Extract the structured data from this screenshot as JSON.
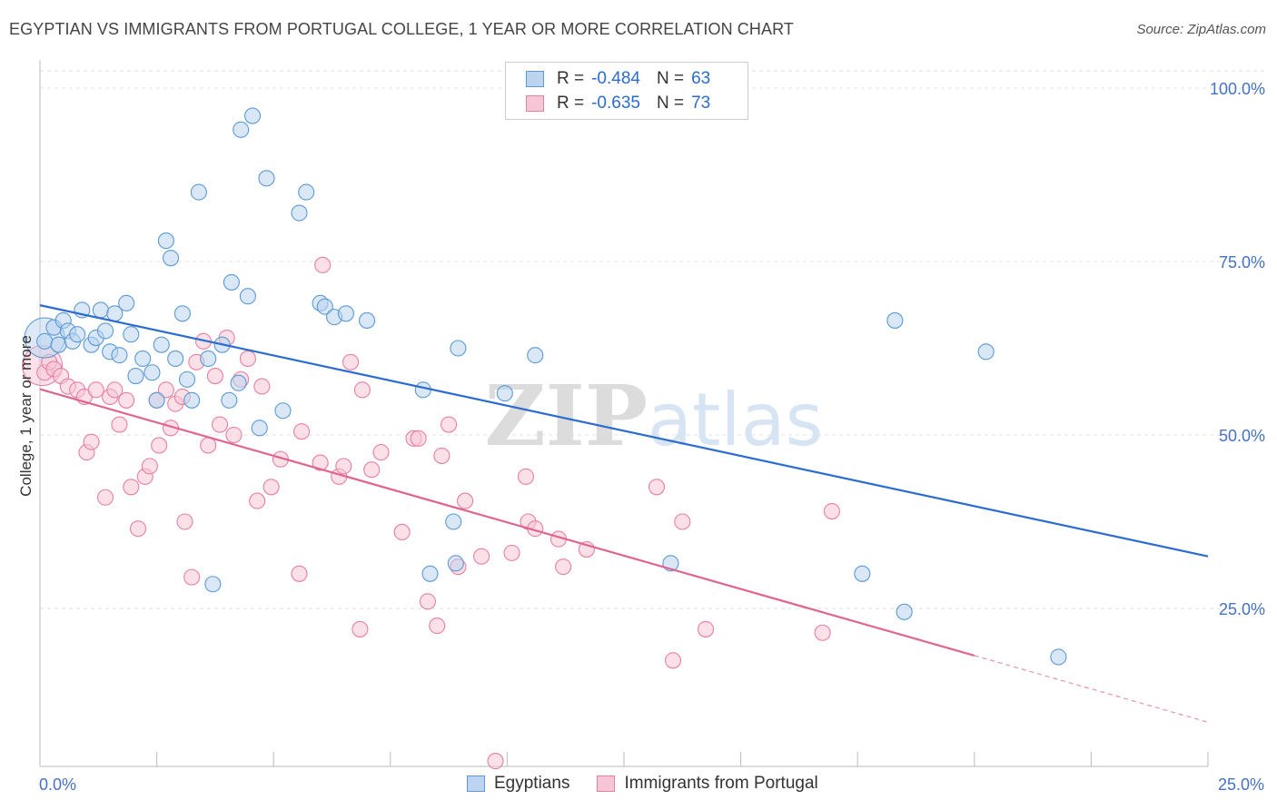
{
  "title": "EGYPTIAN VS IMMIGRANTS FROM PORTUGAL COLLEGE, 1 YEAR OR MORE CORRELATION CHART",
  "source": "Source: ZipAtlas.com",
  "watermark": "ZIPatlas",
  "colors": {
    "blue": "#5b9bd5",
    "blue_fill": "#bcd4f0",
    "blue_line": "#2a6ccf",
    "pink": "#e87fa3",
    "pink_fill": "#f7c6d6",
    "pink_line": "#e0648f",
    "tick_text": "#4472c4"
  },
  "legend": {
    "rows": [
      {
        "r_label": "R =",
        "r_value": "-0.484",
        "n_label": "N =",
        "n_value": "63"
      },
      {
        "r_label": "R =",
        "r_value": "-0.635",
        "n_label": "N =",
        "n_value": "73"
      }
    ]
  },
  "bottom_legend": {
    "series1": "Egyptians",
    "series2": "Immigrants from Portugal"
  },
  "chart_data": {
    "type": "scatter",
    "title": "EGYPTIAN VS IMMIGRANTS FROM PORTUGAL COLLEGE, 1 YEAR OR MORE CORRELATION CHART",
    "xlabel": "",
    "ylabel": "College, 1 year or more",
    "xlim": [
      0,
      25
    ],
    "ylim": [
      0,
      105
    ],
    "x_tick_labels": [
      "0.0%",
      "25.0%"
    ],
    "y_ticks": [
      25,
      50,
      75,
      100
    ],
    "y_tick_labels": [
      "25.0%",
      "50.0%",
      "75.0%",
      "100.0%"
    ],
    "grid": true,
    "legend_position": "top-center",
    "series": [
      {
        "name": "Egyptians",
        "color": "#5b9bd5",
        "trend": {
          "x": [
            0,
            25
          ],
          "y": [
            68.7,
            32.5
          ]
        },
        "points": [
          [
            0.1,
            63.5
          ],
          [
            0.3,
            65.5
          ],
          [
            0.4,
            63
          ],
          [
            0.5,
            66.5
          ],
          [
            0.6,
            65
          ],
          [
            0.7,
            63.5
          ],
          [
            0.8,
            64.5
          ],
          [
            0.9,
            68
          ],
          [
            1.1,
            63
          ],
          [
            1.2,
            64
          ],
          [
            1.3,
            68
          ],
          [
            1.4,
            65
          ],
          [
            1.5,
            62
          ],
          [
            1.6,
            67.5
          ],
          [
            1.7,
            61.5
          ],
          [
            1.85,
            69
          ],
          [
            1.95,
            64.5
          ],
          [
            2.05,
            58.5
          ],
          [
            2.2,
            61
          ],
          [
            2.4,
            59
          ],
          [
            2.5,
            55
          ],
          [
            2.6,
            63
          ],
          [
            2.7,
            78
          ],
          [
            2.8,
            75.5
          ],
          [
            2.9,
            61
          ],
          [
            3.05,
            67.5
          ],
          [
            3.15,
            58
          ],
          [
            3.25,
            55
          ],
          [
            3.4,
            85
          ],
          [
            3.6,
            61
          ],
          [
            3.7,
            28.5
          ],
          [
            3.9,
            63
          ],
          [
            4.05,
            55
          ],
          [
            4.1,
            72
          ],
          [
            4.25,
            57.5
          ],
          [
            4.3,
            94
          ],
          [
            4.45,
            70
          ],
          [
            4.55,
            96
          ],
          [
            4.7,
            51
          ],
          [
            4.85,
            87
          ],
          [
            5.2,
            53.5
          ],
          [
            5.55,
            82
          ],
          [
            5.7,
            85
          ],
          [
            6.0,
            69
          ],
          [
            6.1,
            68.5
          ],
          [
            6.3,
            67
          ],
          [
            6.55,
            67.5
          ],
          [
            7.0,
            66.5
          ],
          [
            8.2,
            56.5
          ],
          [
            8.35,
            30
          ],
          [
            8.85,
            37.5
          ],
          [
            8.9,
            31.5
          ],
          [
            8.95,
            62.5
          ],
          [
            9.95,
            56
          ],
          [
            10.6,
            61.5
          ],
          [
            13.5,
            31.5
          ],
          [
            17.6,
            30
          ],
          [
            18.3,
            66.5
          ],
          [
            18.5,
            24.5
          ],
          [
            20.25,
            62
          ],
          [
            21.8,
            18
          ]
        ],
        "large_point": [
          0.1,
          64
        ]
      },
      {
        "name": "Immigrants from Portugal",
        "color": "#e87fa3",
        "trend": {
          "x": [
            0,
            20
          ],
          "y": [
            56.6,
            18.2
          ]
        },
        "trend_dashed": {
          "x": [
            20,
            25
          ],
          "y": [
            18.2,
            8.6
          ]
        },
        "points": [
          [
            0.1,
            59
          ],
          [
            0.2,
            60.5
          ],
          [
            0.3,
            59.5
          ],
          [
            0.45,
            58.5
          ],
          [
            0.6,
            57
          ],
          [
            0.8,
            56.5
          ],
          [
            0.95,
            55.5
          ],
          [
            1.0,
            47.5
          ],
          [
            1.1,
            49
          ],
          [
            1.2,
            56.5
          ],
          [
            1.4,
            41
          ],
          [
            1.5,
            55.5
          ],
          [
            1.6,
            56.5
          ],
          [
            1.7,
            51.5
          ],
          [
            1.85,
            55
          ],
          [
            1.95,
            42.5
          ],
          [
            2.1,
            36.5
          ],
          [
            2.25,
            44
          ],
          [
            2.35,
            45.5
          ],
          [
            2.5,
            55
          ],
          [
            2.55,
            48.5
          ],
          [
            2.7,
            56.5
          ],
          [
            2.8,
            51
          ],
          [
            2.9,
            54.5
          ],
          [
            3.1,
            37.5
          ],
          [
            3.25,
            29.5
          ],
          [
            3.35,
            60.5
          ],
          [
            3.5,
            63.5
          ],
          [
            3.6,
            48.5
          ],
          [
            3.75,
            58.5
          ],
          [
            3.85,
            51.5
          ],
          [
            4.0,
            64
          ],
          [
            4.15,
            50
          ],
          [
            4.3,
            58
          ],
          [
            4.45,
            61
          ],
          [
            4.65,
            40.5
          ],
          [
            4.75,
            57
          ],
          [
            4.95,
            42.5
          ],
          [
            5.15,
            46.5
          ],
          [
            5.55,
            30
          ],
          [
            5.6,
            50.5
          ],
          [
            6.0,
            46
          ],
          [
            6.05,
            74.5
          ],
          [
            6.4,
            44
          ],
          [
            6.5,
            45.5
          ],
          [
            6.65,
            60.5
          ],
          [
            6.85,
            22
          ],
          [
            6.9,
            56.5
          ],
          [
            7.1,
            45
          ],
          [
            7.3,
            47.5
          ],
          [
            7.75,
            36
          ],
          [
            8.0,
            49.5
          ],
          [
            8.1,
            49.5
          ],
          [
            8.3,
            26
          ],
          [
            8.5,
            22.5
          ],
          [
            8.6,
            47
          ],
          [
            8.75,
            51.5
          ],
          [
            8.95,
            31
          ],
          [
            9.1,
            40.5
          ],
          [
            9.45,
            32.5
          ],
          [
            9.75,
            3
          ],
          [
            10.1,
            33
          ],
          [
            10.4,
            44
          ],
          [
            10.45,
            37.5
          ],
          [
            10.6,
            36.5
          ],
          [
            11.1,
            35
          ],
          [
            11.2,
            31
          ],
          [
            11.7,
            33.5
          ],
          [
            13.2,
            42.5
          ],
          [
            13.55,
            17.5
          ],
          [
            13.75,
            37.5
          ],
          [
            14.25,
            22
          ],
          [
            16.75,
            21.5
          ],
          [
            16.95,
            39
          ],
          [
            3.05,
            55.5
          ]
        ],
        "large_point": [
          0.05,
          60
        ]
      }
    ]
  }
}
